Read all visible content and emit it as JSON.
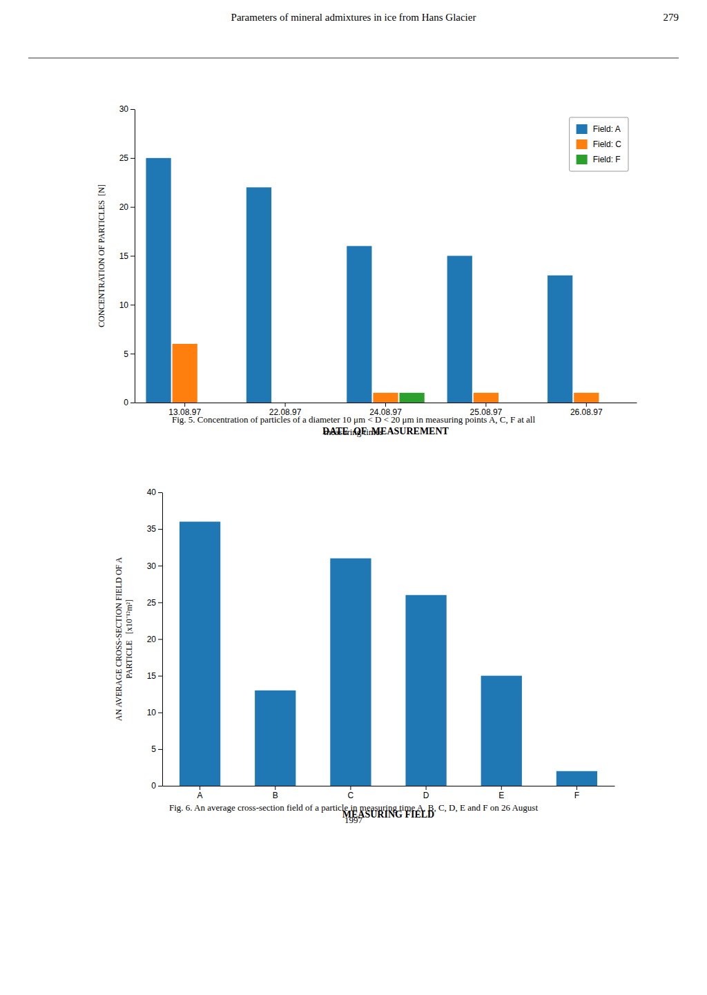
{
  "page_title": "Parameters of mineral admixtures in ice from Hans Glacier",
  "page_number": "279",
  "chart_data": [
    {
      "type": "bar",
      "categories": [
        "13.08.97",
        "22.08.97",
        "24.08.97",
        "25.08.97",
        "26.08.97"
      ],
      "series": [
        {
          "name": "Field: A",
          "values": [
            25,
            22,
            16,
            15,
            13
          ]
        },
        {
          "name": "Field: C",
          "values": [
            6,
            0,
            1,
            1,
            1
          ]
        },
        {
          "name": "Field: F",
          "values": [
            0,
            0,
            1,
            0,
            0
          ]
        }
      ],
      "xlabel": "DATE  OF  MEASUREMENT",
      "ylabel": "CONCENTRATION OF PARTICLES  [N]",
      "ylim": [
        0,
        30
      ],
      "yticks": [
        0,
        5,
        10,
        15,
        20,
        25,
        30
      ],
      "legend": "upper right",
      "grid": false,
      "caption": "Fig. 5. Concentration of particles of a diameter 10 μm < D < 20 μm in measuring points A, C, F at all\nmeasuring times"
    },
    {
      "type": "bar",
      "categories": [
        "A",
        "B",
        "C",
        "D",
        "E",
        "F"
      ],
      "values": [
        36,
        13,
        31,
        26,
        15,
        2
      ],
      "xlabel": "MEASURING FIELD",
      "ylabel": "AN AVERAGE CROSS-SECTION FIELD OF A\nPARTICLE   [x10⁻¹²m²]",
      "ylim": [
        0,
        40
      ],
      "yticks": [
        0,
        5,
        10,
        15,
        20,
        25,
        30,
        35,
        40
      ],
      "grid": false,
      "caption": "Fig. 6. An average cross-section field of a particle in measuring time A, B, C, D, E and F on 26 August\n1997"
    }
  ]
}
